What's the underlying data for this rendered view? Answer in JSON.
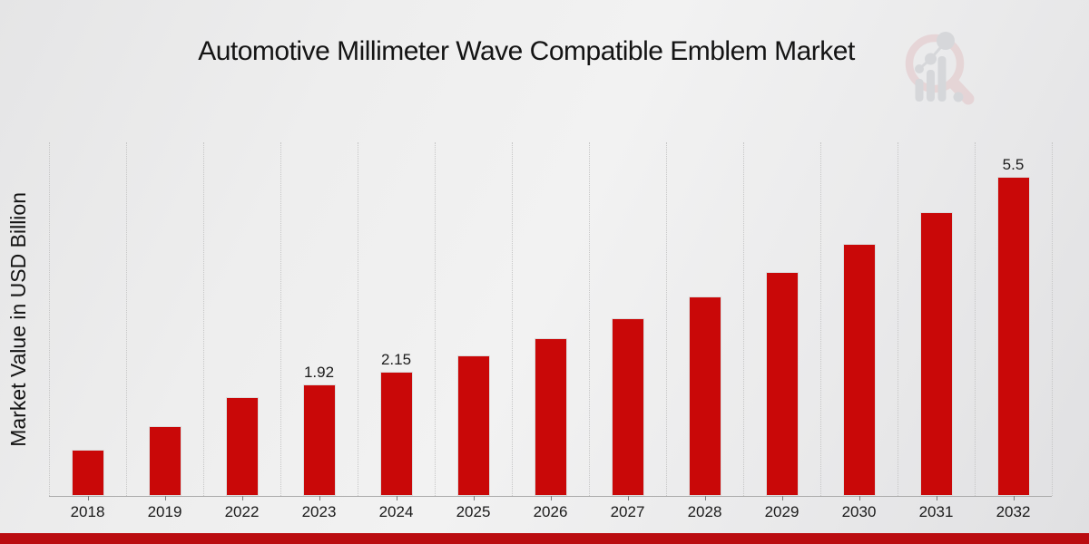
{
  "page": {
    "footer_accent_color": "#ba0c10"
  },
  "logo": {
    "ring_color": "#e2c4c6",
    "glyph_color": "#c5c8cd"
  },
  "chart_data": {
    "type": "bar",
    "title": "Automotive Millimeter Wave Compatible Emblem Market",
    "xlabel": "",
    "ylabel": "Market Value in USD Billion",
    "categories": [
      "2018",
      "2019",
      "2022",
      "2023",
      "2024",
      "2025",
      "2026",
      "2027",
      "2028",
      "2029",
      "2030",
      "2031",
      "2032"
    ],
    "values": [
      0.8,
      1.2,
      1.7,
      1.92,
      2.15,
      2.42,
      2.72,
      3.06,
      3.44,
      3.87,
      4.35,
      4.89,
      5.5
    ],
    "bar_labels": [
      "",
      "",
      "",
      "1.92",
      "2.15",
      "",
      "",
      "",
      "",
      "",
      "",
      "",
      "5.5"
    ],
    "bar_color": "#c90808",
    "ylim": [
      0,
      6.1
    ],
    "grid": "vertical-dotted",
    "legend": "none"
  }
}
